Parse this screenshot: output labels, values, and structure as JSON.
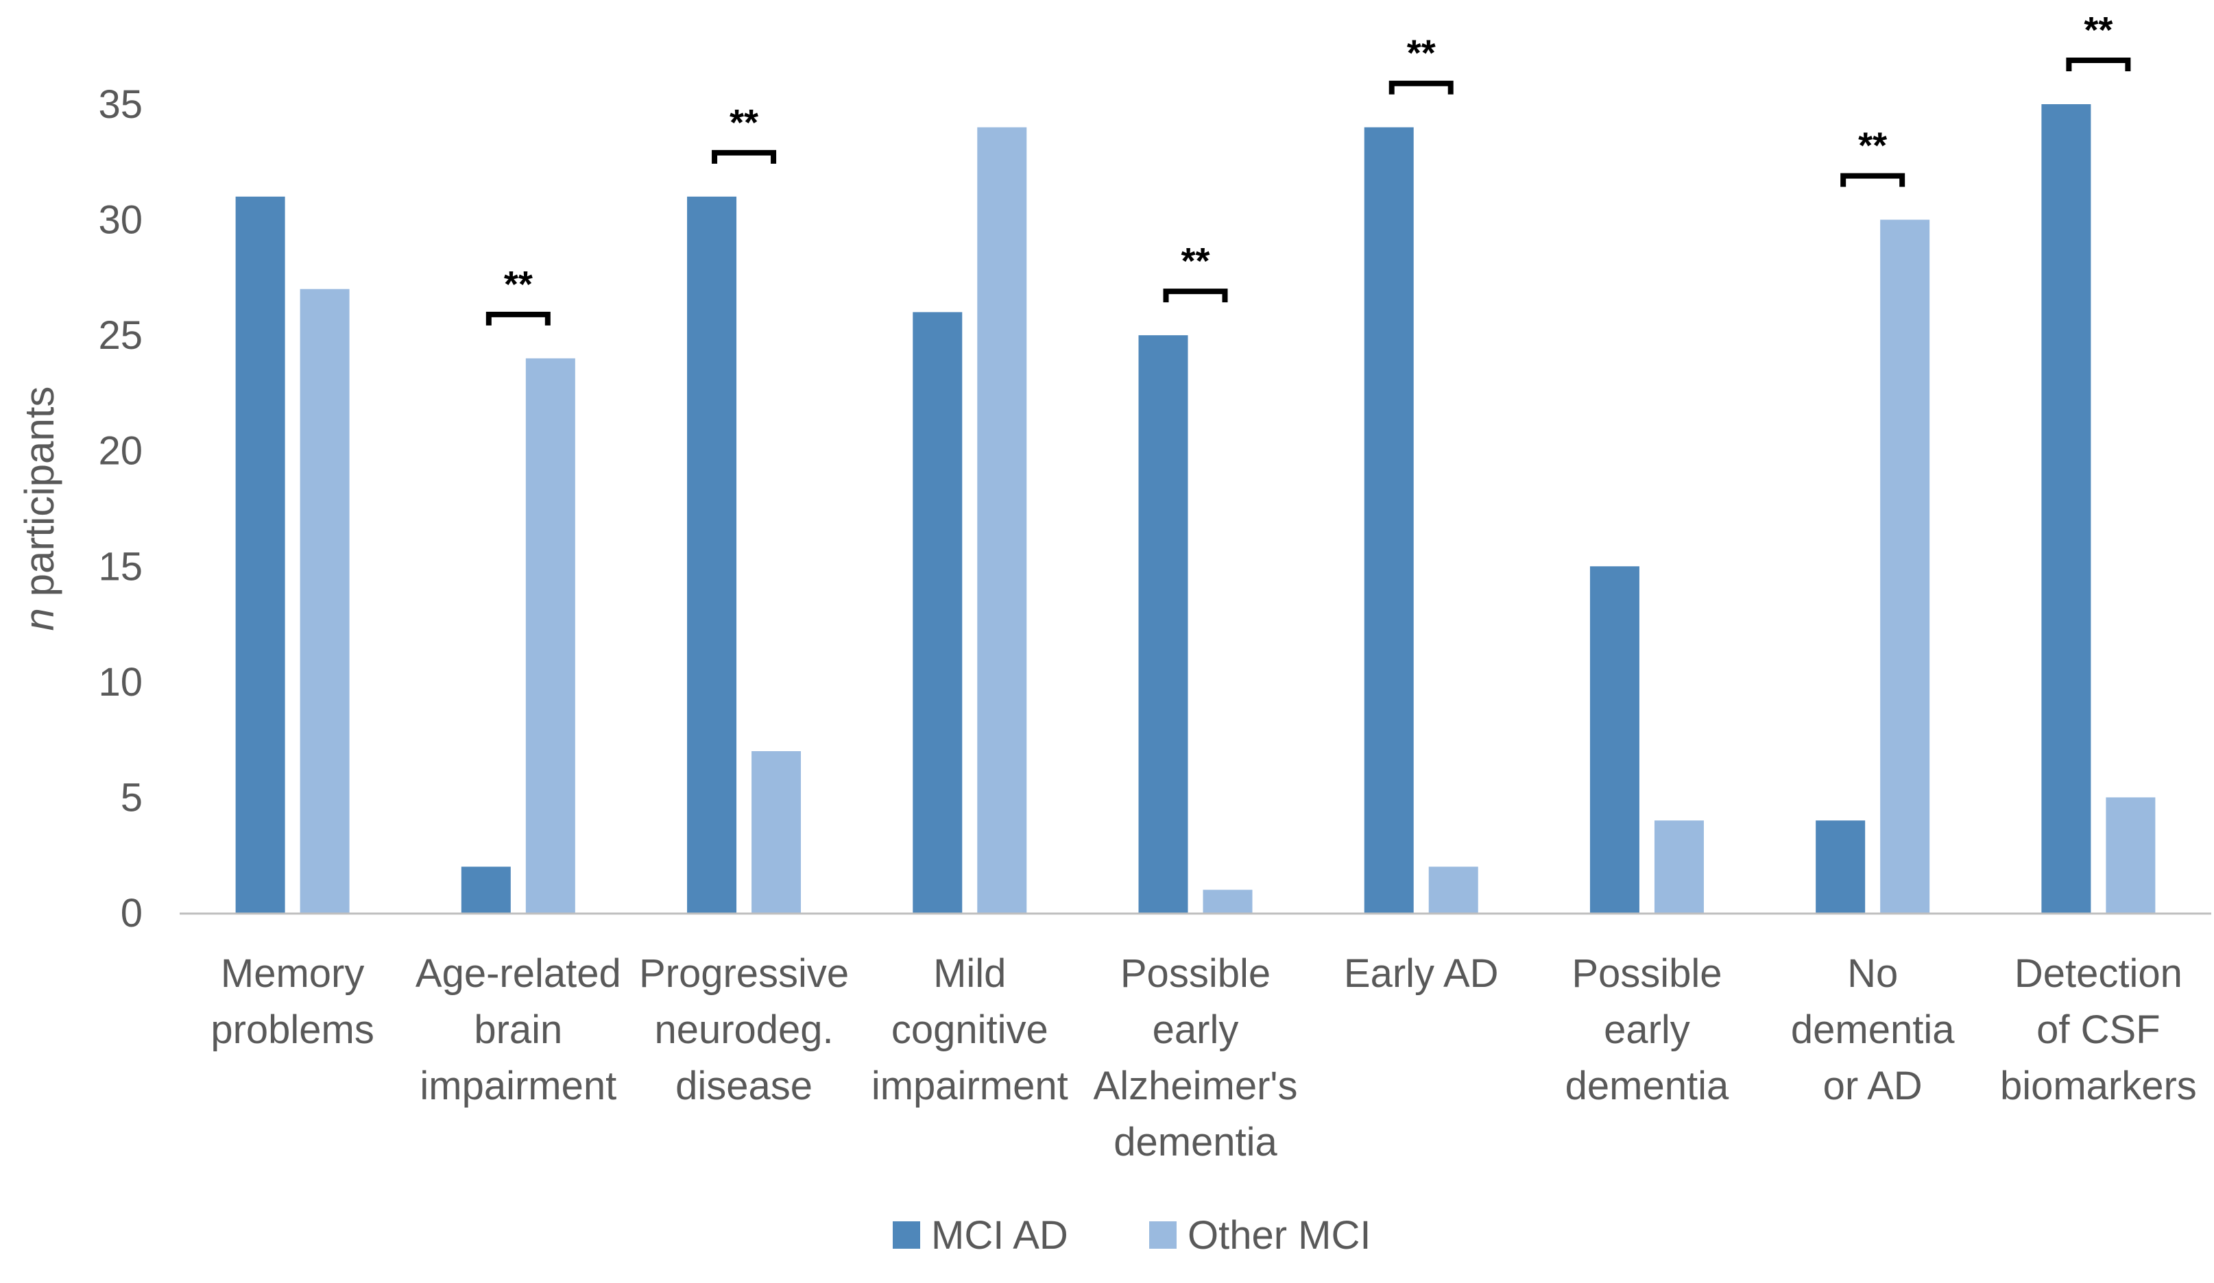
{
  "chart_data": {
    "type": "bar",
    "title": "",
    "xlabel": "",
    "ylabel": {
      "italic": "n",
      "rest": " participants"
    },
    "ylim": [
      0,
      35
    ],
    "yticks": [
      0,
      5,
      10,
      15,
      20,
      25,
      30,
      35
    ],
    "grid": false,
    "legend_position": "bottom",
    "categories": [
      [
        "Memory",
        "problems"
      ],
      [
        "Age-related",
        "brain",
        "impairment"
      ],
      [
        "Progressive",
        "neurodeg.",
        "disease"
      ],
      [
        "Mild",
        "cognitive",
        "impairment"
      ],
      [
        "Possible",
        "early",
        "Alzheimer's",
        "dementia"
      ],
      [
        "Early AD"
      ],
      [
        "Possible",
        "early",
        "dementia"
      ],
      [
        "No",
        "dementia",
        "or AD"
      ],
      [
        "Detection",
        "of CSF",
        "biomarkers"
      ]
    ],
    "series": [
      {
        "name": "MCI AD",
        "color": "#4F87BA",
        "values": [
          31,
          2,
          31,
          26,
          25,
          34,
          15,
          4,
          35
        ]
      },
      {
        "name": "Other MCI",
        "color": "#9ABADF",
        "values": [
          27,
          24,
          7,
          34,
          1,
          2,
          4,
          30,
          5
        ]
      }
    ],
    "significance": [
      {
        "category_index": 1,
        "label": "**"
      },
      {
        "category_index": 2,
        "label": "**"
      },
      {
        "category_index": 4,
        "label": "**"
      },
      {
        "category_index": 5,
        "label": "**"
      },
      {
        "category_index": 7,
        "label": "**"
      },
      {
        "category_index": 8,
        "label": "**"
      }
    ],
    "axis_color": "#BFBFBF"
  }
}
